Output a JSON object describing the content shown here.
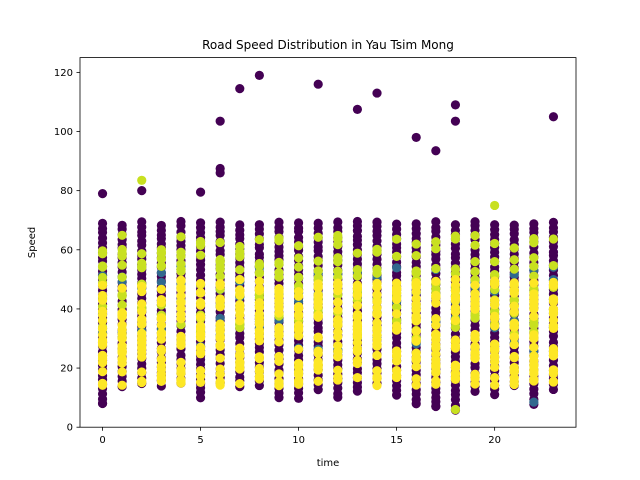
{
  "chart_data": {
    "type": "scatter",
    "title": "Road Speed Distribution in Yau Tsim Mong",
    "xlabel": "time",
    "ylabel": "Speed",
    "xlim": [
      -1.15,
      24.15
    ],
    "ylim": [
      0,
      125
    ],
    "x_ticks": [
      0,
      5,
      10,
      15,
      20
    ],
    "y_ticks": [
      0,
      20,
      40,
      60,
      80,
      100,
      120
    ],
    "grid": false,
    "legend": "none",
    "colors": {
      "purple": "#440154",
      "teal": "#31688e",
      "green": "#35b779",
      "yellowgreen": "#c8e020",
      "yellow": "#fde725"
    },
    "columns": [
      {
        "x": 0,
        "ymin": 8,
        "ymax": 79
      },
      {
        "x": 1,
        "ymin": 14,
        "ymax": 75
      },
      {
        "x": 2,
        "ymin": 15,
        "ymax": 83
      },
      {
        "x": 3,
        "ymin": 14,
        "ymax": 70
      },
      {
        "x": 4,
        "ymin": 15,
        "ymax": 76
      },
      {
        "x": 5,
        "ymin": 10,
        "ymax": 80
      },
      {
        "x": 6,
        "ymin": 15,
        "ymax": 103
      },
      {
        "x": 7,
        "ymin": 14,
        "ymax": 114
      },
      {
        "x": 8,
        "ymin": 14,
        "ymax": 119
      },
      {
        "x": 9,
        "ymin": 10,
        "ymax": 70
      },
      {
        "x": 10,
        "ymin": 10,
        "ymax": 70
      },
      {
        "x": 11,
        "ymin": 13,
        "ymax": 116
      },
      {
        "x": 12,
        "ymin": 10,
        "ymax": 70
      },
      {
        "x": 13,
        "ymin": 12,
        "ymax": 107
      },
      {
        "x": 14,
        "ymin": 15,
        "ymax": 113
      },
      {
        "x": 15,
        "ymin": 11,
        "ymax": 70
      },
      {
        "x": 16,
        "ymin": 8,
        "ymax": 98
      },
      {
        "x": 17,
        "ymin": 7,
        "ymax": 93
      },
      {
        "x": 18,
        "ymin": 6,
        "ymax": 109
      },
      {
        "x": 19,
        "ymin": 12,
        "ymax": 70
      },
      {
        "x": 20,
        "ymin": 11,
        "ymax": 75
      },
      {
        "x": 21,
        "ymin": 14,
        "ymax": 70
      },
      {
        "x": 22,
        "ymin": 8,
        "ymax": 70
      },
      {
        "x": 23,
        "ymin": 13,
        "ymax": 105
      }
    ],
    "outliers": [
      {
        "x": 2,
        "y": 83.5,
        "color": "yellowgreen"
      },
      {
        "x": 2,
        "y": 80,
        "color": "purple"
      },
      {
        "x": 5,
        "y": 79.5,
        "color": "purple"
      },
      {
        "x": 6,
        "y": 103.5,
        "color": "purple"
      },
      {
        "x": 6,
        "y": 87.5,
        "color": "purple"
      },
      {
        "x": 6,
        "y": 86,
        "color": "purple"
      },
      {
        "x": 7,
        "y": 114.5,
        "color": "purple"
      },
      {
        "x": 8,
        "y": 119,
        "color": "purple"
      },
      {
        "x": 11,
        "y": 116,
        "color": "purple"
      },
      {
        "x": 13,
        "y": 107.5,
        "color": "purple"
      },
      {
        "x": 14,
        "y": 113,
        "color": "purple"
      },
      {
        "x": 16,
        "y": 98,
        "color": "purple"
      },
      {
        "x": 17,
        "y": 93.5,
        "color": "purple"
      },
      {
        "x": 18,
        "y": 109,
        "color": "purple"
      },
      {
        "x": 18,
        "y": 103.5,
        "color": "purple"
      },
      {
        "x": 20,
        "y": 75,
        "color": "yellowgreen"
      },
      {
        "x": 22,
        "y": 8.5,
        "color": "teal"
      },
      {
        "x": 23,
        "y": 105,
        "color": "purple"
      },
      {
        "x": 0,
        "y": 79,
        "color": "purple"
      },
      {
        "x": 0,
        "y": 8,
        "color": "purple"
      },
      {
        "x": 18,
        "y": 6,
        "color": "yellowgreen"
      },
      {
        "x": 17,
        "y": 7,
        "color": "purple"
      }
    ]
  }
}
